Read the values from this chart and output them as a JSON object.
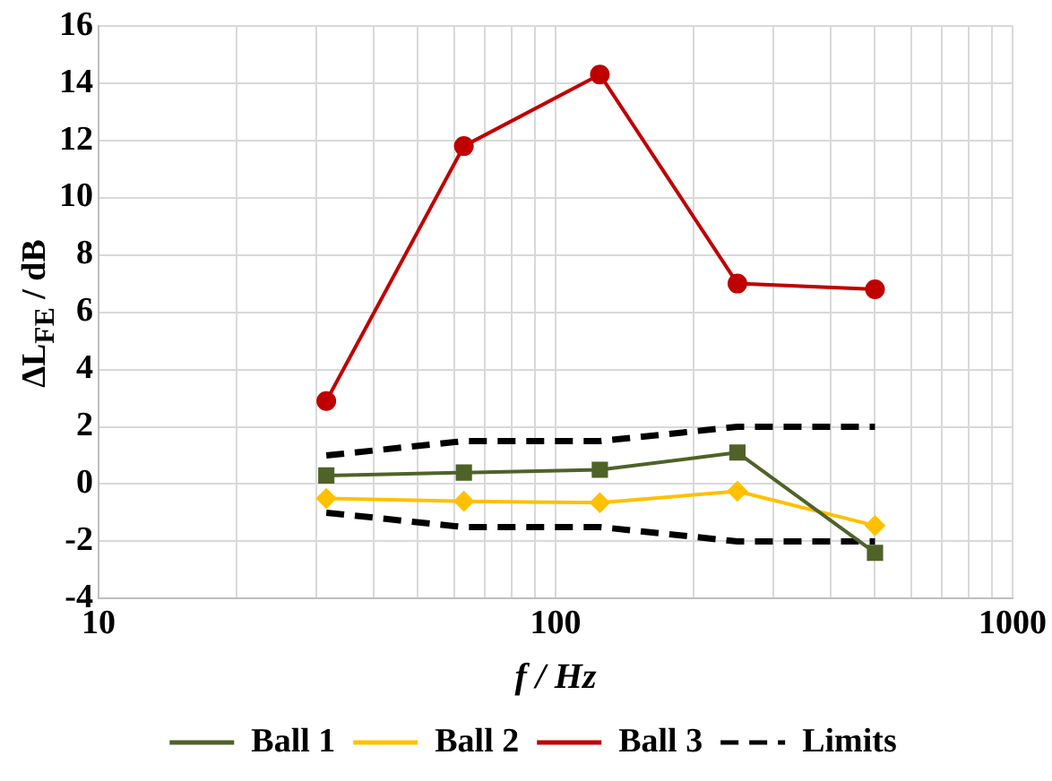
{
  "chart_data": {
    "type": "line",
    "xlabel": "f / Hz",
    "ylabel": "ΔL$_{FE}$ / dB",
    "log": "x",
    "grid": true,
    "legend": "bottom",
    "line_style": "solid",
    "xlim": [
      10,
      1000
    ],
    "xticks": [
      10,
      {
        "value": 20,
        "label": null
      },
      {
        "value": 30,
        "label": null
      },
      {
        "value": 40,
        "label": null
      },
      {
        "value": 50,
        "label": null
      },
      {
        "value": 60,
        "label": null
      },
      {
        "value": 70,
        "label": null
      },
      {
        "value": 80,
        "label": null
      },
      {
        "value": 90,
        "label": null
      },
      100,
      {
        "value": 200,
        "label": null
      },
      {
        "value": 300,
        "label": null
      },
      {
        "value": 400,
        "label": null
      },
      {
        "value": 500,
        "label": null
      },
      {
        "value": 600,
        "label": null
      },
      {
        "value": 700,
        "label": null
      },
      {
        "value": 800,
        "label": null
      },
      {
        "value": 900,
        "label": null
      },
      1000
    ],
    "ylim": [
      -4,
      16
    ],
    "yticks": [
      -4,
      -2,
      0,
      2,
      4,
      6,
      8,
      10,
      12,
      14,
      16
    ],
    "x": [
      31.5,
      63,
      125,
      250,
      500
    ],
    "series": [
      {
        "name": "Ball 1",
        "color": "#4f6228",
        "marker": "square",
        "values": [
          0.3,
          0.4,
          0.5,
          1.1,
          -2.4
        ]
      },
      {
        "name": "Ball 2",
        "color": "#ffc000",
        "marker": "diamond",
        "values": [
          -0.5,
          -0.6,
          -0.65,
          -0.25,
          -1.45
        ]
      },
      {
        "name": "Ball 3",
        "color": "#c00000",
        "marker": "circle",
        "values": [
          2.9,
          11.8,
          14.3,
          7.0,
          6.8
        ]
      },
      {
        "name": "Limits",
        "color": "#000000",
        "marker": "none",
        "line_style": "dashed",
        "values": [
          1,
          1.5,
          1.5,
          2,
          2
        ]
      },
      {
        "color": "#000000",
        "marker": "none",
        "line_style": "dashed",
        "values": [
          -1,
          -1.5,
          -1.5,
          -2,
          -2
        ]
      }
    ]
  }
}
